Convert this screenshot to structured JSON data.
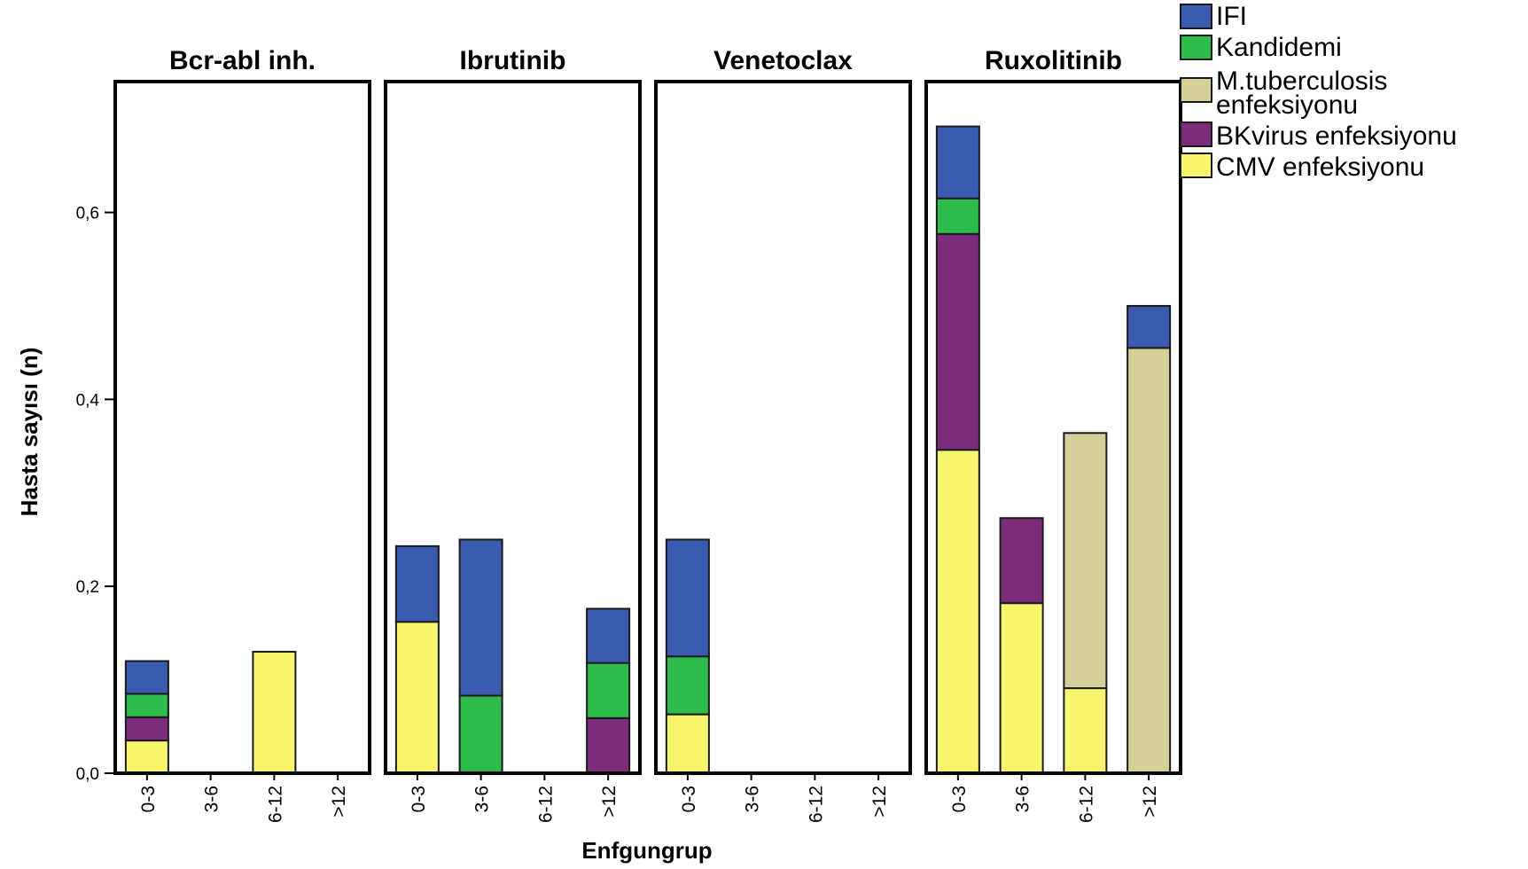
{
  "chart_data": {
    "type": "bar",
    "stacked": true,
    "facet_label": "",
    "xlabel": "Enfgungrup",
    "ylabel": "Hasta sayısı (n)",
    "ylim": [
      0,
      0.74
    ],
    "yticks": [
      0.0,
      0.2,
      0.4,
      0.6
    ],
    "ytick_labels": [
      "0,0",
      "0,2",
      "0,4",
      "0,6"
    ],
    "categories": [
      "0-3",
      "3-6",
      "6-12",
      ">12"
    ],
    "legend_position": "top-right",
    "series": [
      {
        "key": "cmv",
        "name": "CMV enfeksiyonu",
        "color": "#f7f46e"
      },
      {
        "key": "bk",
        "name": "BKvirus enfeksiyonu",
        "color": "#7b2d7c"
      },
      {
        "key": "tb",
        "name": "M.tuberculosis enfeksiyonu",
        "name_lines": [
          "M.tuberculosis",
          "enfeksiyonu"
        ],
        "color": "#d6cf98"
      },
      {
        "key": "kand",
        "name": "Kandidemi",
        "color": "#2ebd4c"
      },
      {
        "key": "ifi",
        "name": "IFI",
        "color": "#3b5bb0"
      }
    ],
    "legend_order": [
      "ifi",
      "kand",
      "tb",
      "bk",
      "cmv"
    ],
    "panels": [
      {
        "title": "Bcr-abl inh.",
        "values": {
          "cmv": [
            0.035,
            0,
            0.13,
            0
          ],
          "bk": [
            0.025,
            0,
            0,
            0
          ],
          "tb": [
            0,
            0,
            0,
            0
          ],
          "kand": [
            0.025,
            0,
            0,
            0
          ],
          "ifi": [
            0.035,
            0,
            0,
            0
          ]
        }
      },
      {
        "title": "Ibrutinib",
        "values": {
          "cmv": [
            0.162,
            0,
            0,
            0
          ],
          "bk": [
            0,
            0,
            0,
            0.059
          ],
          "tb": [
            0,
            0,
            0,
            0
          ],
          "kand": [
            0,
            0.083,
            0,
            0.059
          ],
          "ifi": [
            0.081,
            0.167,
            0,
            0.058
          ]
        }
      },
      {
        "title": "Venetoclax",
        "values": {
          "cmv": [
            0.063,
            0,
            0,
            0
          ],
          "bk": [
            0,
            0,
            0,
            0
          ],
          "tb": [
            0,
            0,
            0,
            0
          ],
          "kand": [
            0.062,
            0,
            0,
            0
          ],
          "ifi": [
            0.125,
            0,
            0,
            0
          ]
        }
      },
      {
        "title": "Ruxolitinib",
        "values": {
          "cmv": [
            0.346,
            0.182,
            0.091,
            0
          ],
          "bk": [
            0.231,
            0.091,
            0,
            0
          ],
          "tb": [
            0,
            0,
            0.273,
            0.455
          ],
          "kand": [
            0.038,
            0,
            0,
            0
          ],
          "ifi": [
            0.077,
            0,
            0,
            0.045
          ]
        }
      }
    ]
  }
}
